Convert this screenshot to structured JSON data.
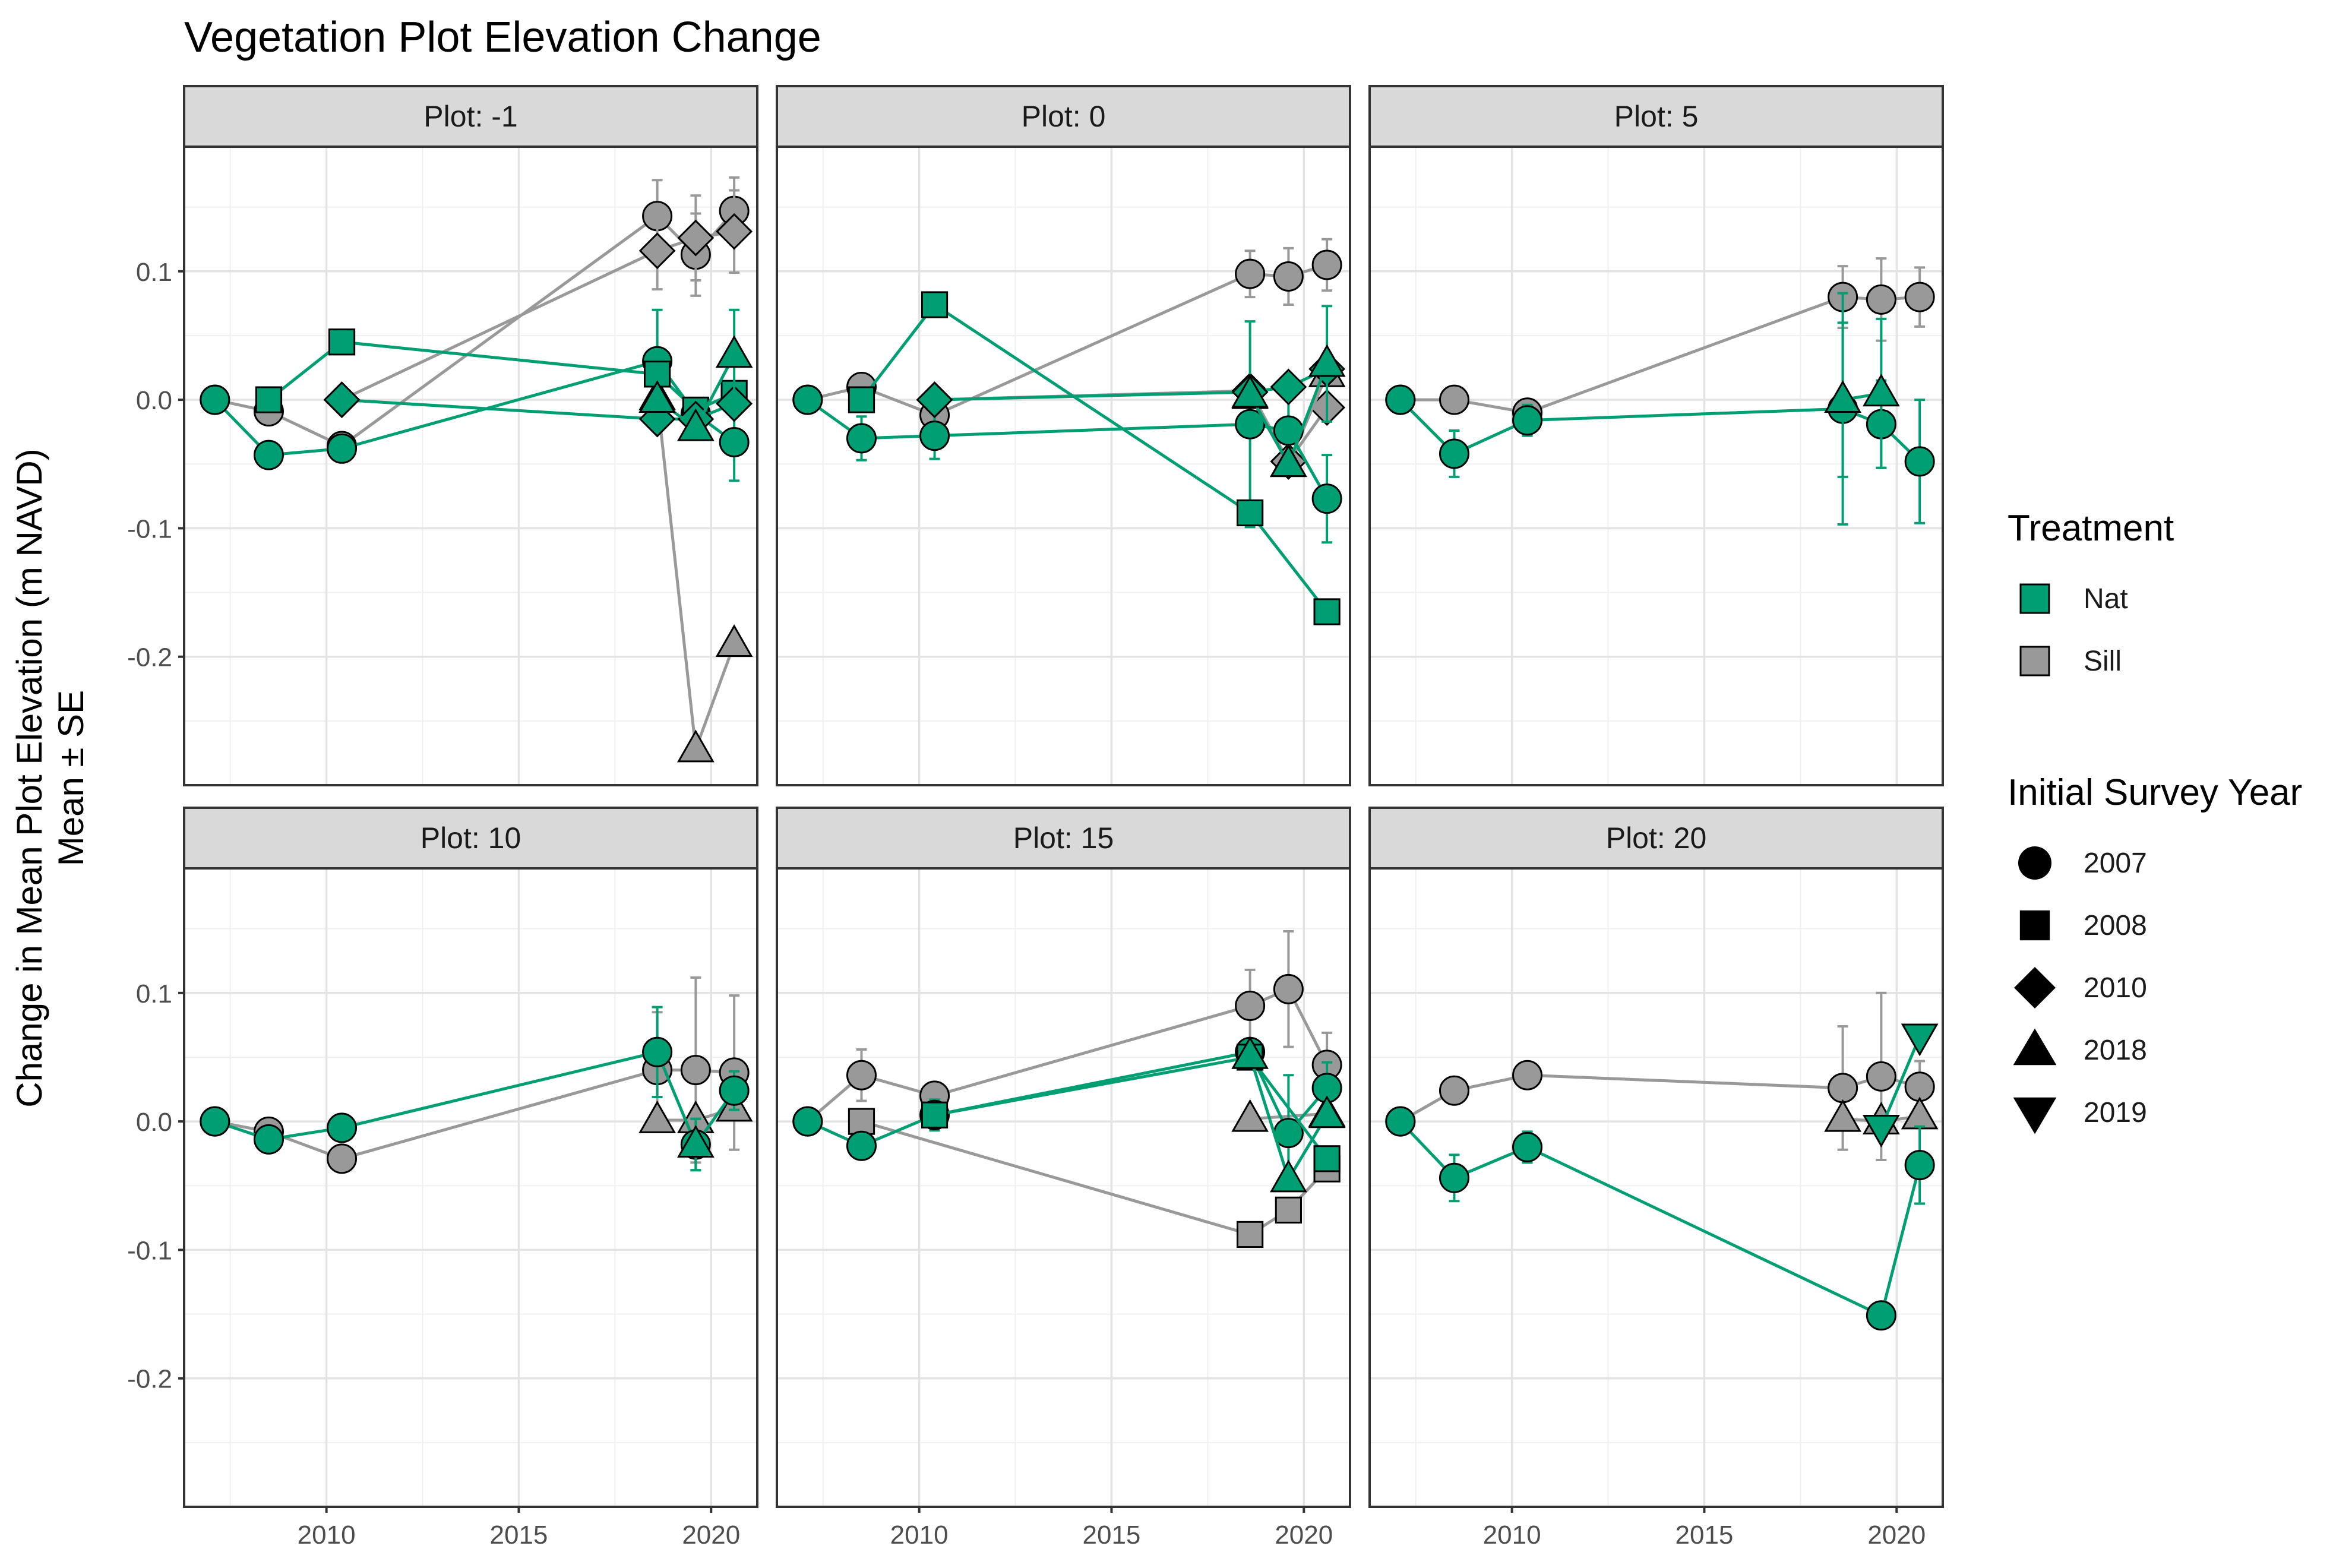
{
  "chart_data": {
    "type": "line",
    "title": "Vegetation Plot Elevation Change",
    "xlabel": "",
    "ylabel": "Change in Mean Plot Elevation (m NAVD)",
    "ylabel2": "Mean ± SE",
    "xlim": [
      2006.3,
      2021.2
    ],
    "ylim": [
      -0.3,
      0.197
    ],
    "x_ticks": [
      2010,
      2015,
      2020
    ],
    "x_tick_labels": [
      "2010",
      "2015",
      "2020"
    ],
    "y_ticks": [
      0.1,
      0.0,
      -0.1,
      -0.2
    ],
    "y_tick_labels": [
      "0.1",
      "0.0",
      "-0.1",
      "-0.2"
    ],
    "grid": true,
    "legend_position": "right",
    "legend": {
      "treatment_title": "Treatment",
      "treatment": [
        {
          "key": "Nat",
          "label": "Nat",
          "color": "#009e73"
        },
        {
          "key": "Sill",
          "label": "Sill",
          "color": "#999999"
        }
      ],
      "year_title": "Initial Survey Year",
      "years": [
        {
          "key": "2007",
          "label": "2007",
          "shape": "circle"
        },
        {
          "key": "2008",
          "label": "2008",
          "shape": "square"
        },
        {
          "key": "2010",
          "label": "2010",
          "shape": "diamond"
        },
        {
          "key": "2018",
          "label": "2018",
          "shape": "triangle"
        },
        {
          "key": "2019",
          "label": "2019",
          "shape": "triangle-down"
        }
      ]
    },
    "panels": [
      {
        "label": "Plot: -1",
        "series": [
          {
            "treatment": "Sill",
            "initial_year": "2007",
            "points": [
              [
                2007.1,
                0.0,
                0
              ],
              [
                2008.5,
                -0.009,
                0
              ],
              [
                2010.4,
                -0.036,
                0.006
              ],
              [
                2018.6,
                0.143,
                0.028
              ],
              [
                2019.6,
                0.113,
                0.032
              ],
              [
                2020.6,
                0.147,
                0.026
              ]
            ]
          },
          {
            "treatment": "Sill",
            "initial_year": "2010",
            "points": [
              [
                2010.4,
                0.0,
                0
              ],
              [
                2018.6,
                0.116,
                0.03
              ],
              [
                2019.6,
                0.126,
                0.033
              ],
              [
                2020.6,
                0.131,
                0.032
              ]
            ]
          },
          {
            "treatment": "Sill",
            "initial_year": "2018",
            "points": [
              [
                2018.6,
                0.002,
                0
              ],
              [
                2019.6,
                -0.272,
                0
              ],
              [
                2020.6,
                -0.19,
                0
              ]
            ]
          },
          {
            "treatment": "Nat",
            "initial_year": "2007",
            "points": [
              [
                2007.1,
                0.0,
                0
              ],
              [
                2008.5,
                -0.043,
                0.01
              ],
              [
                2010.4,
                -0.038,
                0.006
              ],
              [
                2018.6,
                0.03,
                0.04
              ],
              [
                2019.6,
                -0.011,
                0.008
              ],
              [
                2020.6,
                -0.033,
                0.03
              ]
            ]
          },
          {
            "treatment": "Nat",
            "initial_year": "2008",
            "points": [
              [
                2008.5,
                0.0,
                0
              ],
              [
                2010.4,
                0.045,
                0
              ],
              [
                2018.6,
                0.02,
                0
              ],
              [
                2019.6,
                -0.008,
                0
              ],
              [
                2020.6,
                0.005,
                0
              ]
            ]
          },
          {
            "treatment": "Nat",
            "initial_year": "2010",
            "points": [
              [
                2010.4,
                0.0,
                0
              ],
              [
                2018.6,
                -0.015,
                0
              ],
              [
                2019.6,
                -0.015,
                0
              ],
              [
                2020.6,
                -0.003,
                0
              ]
            ]
          },
          {
            "treatment": "Nat",
            "initial_year": "2018",
            "points": [
              [
                2018.6,
                0.0,
                0
              ],
              [
                2019.6,
                -0.022,
                0
              ],
              [
                2020.6,
                0.035,
                0.035
              ]
            ]
          }
        ]
      },
      {
        "label": "Plot: 0",
        "series": [
          {
            "treatment": "Sill",
            "initial_year": "2007",
            "points": [
              [
                2007.1,
                0.0,
                0
              ],
              [
                2008.5,
                0.01,
                0
              ],
              [
                2010.4,
                -0.012,
                0
              ],
              [
                2018.6,
                0.098,
                0.018
              ],
              [
                2019.6,
                0.096,
                0.022
              ],
              [
                2020.6,
                0.105,
                0.02
              ]
            ]
          },
          {
            "treatment": "Sill",
            "initial_year": "2010",
            "points": [
              [
                2010.4,
                0.0,
                0
              ],
              [
                2018.6,
                0.007,
                0
              ],
              [
                2019.6,
                -0.048,
                0
              ],
              [
                2020.6,
                -0.006,
                0
              ]
            ]
          },
          {
            "treatment": "Sill",
            "initial_year": "2018",
            "points": [
              [
                2018.6,
                0.003,
                0
              ],
              [
                2019.6,
                -0.05,
                0
              ],
              [
                2020.6,
                0.02,
                0
              ]
            ]
          },
          {
            "treatment": "Nat",
            "initial_year": "2007",
            "points": [
              [
                2007.1,
                0.0,
                0
              ],
              [
                2008.5,
                -0.03,
                0.017
              ],
              [
                2010.4,
                -0.028,
                0.018
              ],
              [
                2018.6,
                -0.019,
                0.08
              ],
              [
                2019.6,
                -0.024,
                0.03
              ],
              [
                2020.6,
                -0.077,
                0.034
              ]
            ]
          },
          {
            "treatment": "Nat",
            "initial_year": "2008",
            "points": [
              [
                2008.5,
                0.0,
                0
              ],
              [
                2010.4,
                0.074,
                0
              ],
              [
                2018.6,
                -0.088,
                0
              ],
              [
                2020.6,
                -0.165,
                0
              ]
            ]
          },
          {
            "treatment": "Nat",
            "initial_year": "2010",
            "points": [
              [
                2010.4,
                0.0,
                0
              ],
              [
                2018.6,
                0.006,
                0
              ],
              [
                2019.6,
                0.01,
                0
              ],
              [
                2020.6,
                0.024,
                0
              ]
            ]
          },
          {
            "treatment": "Nat",
            "initial_year": "2018",
            "points": [
              [
                2018.6,
                0.004,
                0
              ],
              [
                2019.6,
                -0.05,
                0
              ],
              [
                2020.6,
                0.028,
                0.045
              ]
            ]
          }
        ]
      },
      {
        "label": "Plot: 5",
        "series": [
          {
            "treatment": "Sill",
            "initial_year": "2007",
            "points": [
              [
                2007.1,
                0.0,
                0
              ],
              [
                2008.5,
                0.0,
                0
              ],
              [
                2010.4,
                -0.01,
                0
              ],
              [
                2018.6,
                0.08,
                0.024
              ],
              [
                2019.6,
                0.078,
                0.032
              ],
              [
                2020.6,
                0.08,
                0.023
              ]
            ]
          },
          {
            "treatment": "Nat",
            "initial_year": "2007",
            "points": [
              [
                2007.1,
                0.0,
                0
              ],
              [
                2008.5,
                -0.042,
                0.018
              ],
              [
                2010.4,
                -0.016,
                0.012
              ],
              [
                2018.6,
                -0.007,
                0.09
              ],
              [
                2019.6,
                -0.019,
                0.034
              ],
              [
                2020.6,
                -0.048,
                0.048
              ]
            ]
          },
          {
            "treatment": "Nat",
            "initial_year": "2018",
            "points": [
              [
                2018.6,
                0.0,
                0.06
              ],
              [
                2019.6,
                0.005,
                0.058
              ]
            ]
          }
        ]
      },
      {
        "label": "Plot: 10",
        "series": [
          {
            "treatment": "Sill",
            "initial_year": "2007",
            "points": [
              [
                2007.1,
                0.0,
                0
              ],
              [
                2008.5,
                -0.008,
                0
              ],
              [
                2010.4,
                -0.029,
                0
              ],
              [
                2018.6,
                0.04,
                0.045
              ],
              [
                2019.6,
                0.04,
                0.072
              ],
              [
                2020.6,
                0.038,
                0.06
              ]
            ]
          },
          {
            "treatment": "Sill",
            "initial_year": "2018",
            "points": [
              [
                2018.6,
                0.001,
                0
              ],
              [
                2019.6,
                0.001,
                0
              ],
              [
                2020.6,
                0.01,
                0
              ]
            ]
          },
          {
            "treatment": "Nat",
            "initial_year": "2007",
            "points": [
              [
                2007.1,
                0.0,
                0
              ],
              [
                2008.5,
                -0.014,
                0
              ],
              [
                2010.4,
                -0.005,
                0.01
              ],
              [
                2018.6,
                0.054,
                0.035
              ],
              [
                2019.6,
                -0.018,
                0.02
              ],
              [
                2020.6,
                0.024,
                0.015
              ]
            ]
          },
          {
            "treatment": "Nat",
            "initial_year": "2018",
            "points": [
              [
                2019.6,
                -0.018,
                0.02
              ]
            ]
          }
        ]
      },
      {
        "label": "Plot: 15",
        "series": [
          {
            "treatment": "Sill",
            "initial_year": "2007",
            "points": [
              [
                2007.1,
                0.0,
                0
              ],
              [
                2008.5,
                0.036,
                0.02
              ],
              [
                2010.4,
                0.02,
                0
              ],
              [
                2018.6,
                0.09,
                0.028
              ],
              [
                2019.6,
                0.103,
                0.045
              ],
              [
                2020.6,
                0.044,
                0.025
              ]
            ]
          },
          {
            "treatment": "Sill",
            "initial_year": "2008",
            "points": [
              [
                2008.5,
                0.0,
                0
              ],
              [
                2018.6,
                -0.088,
                0
              ],
              [
                2019.6,
                -0.069,
                0
              ],
              [
                2020.6,
                -0.037,
                0
              ]
            ]
          },
          {
            "treatment": "Sill",
            "initial_year": "2018",
            "points": [
              [
                2018.6,
                0.002,
                0
              ],
              [
                2020.6,
                0.006,
                0
              ]
            ]
          },
          {
            "treatment": "Nat",
            "initial_year": "2007",
            "points": [
              [
                2007.1,
                0.0,
                0
              ],
              [
                2008.5,
                -0.019,
                0
              ],
              [
                2010.4,
                0.005,
                0.012
              ],
              [
                2018.6,
                0.054,
                0
              ],
              [
                2019.6,
                -0.009,
                0.045
              ],
              [
                2020.6,
                0.026,
                0.02
              ]
            ]
          },
          {
            "treatment": "Nat",
            "initial_year": "2008",
            "points": [
              [
                2010.4,
                0.005,
                0
              ],
              [
                2018.6,
                0.05,
                0
              ],
              [
                2020.6,
                -0.029,
                0
              ]
            ]
          },
          {
            "treatment": "Nat",
            "initial_year": "2018",
            "points": [
              [
                2018.6,
                0.051,
                0
              ],
              [
                2019.6,
                -0.045,
                0
              ],
              [
                2020.6,
                0.005,
                0
              ]
            ]
          }
        ]
      },
      {
        "label": "Plot: 20",
        "series": [
          {
            "treatment": "Sill",
            "initial_year": "2007",
            "points": [
              [
                2007.1,
                0.0,
                0
              ],
              [
                2008.5,
                0.024,
                0
              ],
              [
                2010.4,
                0.036,
                0
              ],
              [
                2018.6,
                0.026,
                0.048
              ],
              [
                2019.6,
                0.035,
                0.065
              ],
              [
                2020.6,
                0.027,
                0.02
              ]
            ]
          },
          {
            "treatment": "Sill",
            "initial_year": "2018",
            "points": [
              [
                2018.6,
                0.002,
                0
              ],
              [
                2019.6,
                0.0,
                0
              ],
              [
                2020.6,
                0.004,
                0
              ]
            ]
          },
          {
            "treatment": "Nat",
            "initial_year": "2007",
            "points": [
              [
                2007.1,
                0.0,
                0
              ],
              [
                2008.5,
                -0.044,
                0.018
              ],
              [
                2010.4,
                -0.02,
                0.012
              ],
              [
                2019.6,
                -0.151,
                0
              ],
              [
                2020.6,
                -0.034,
                0.03
              ]
            ]
          },
          {
            "treatment": "Nat",
            "initial_year": "2019",
            "points": [
              [
                2019.6,
                -0.005,
                0
              ],
              [
                2020.6,
                0.066,
                0
              ]
            ]
          }
        ]
      }
    ]
  }
}
